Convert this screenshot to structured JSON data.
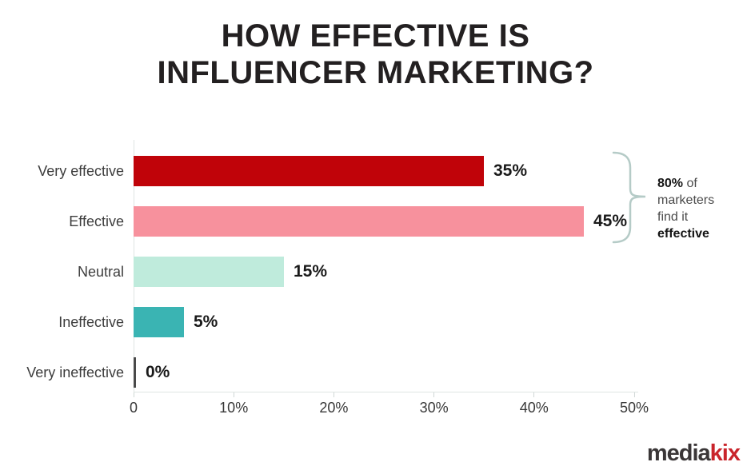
{
  "title": {
    "line1": "HOW EFFECTIVE IS",
    "line2": "INFLUENCER MARKETING?",
    "color": "#232021"
  },
  "chart_data": {
    "type": "bar",
    "orientation": "horizontal",
    "title": "HOW EFFECTIVE IS INFLUENCER MARKETING?",
    "categories": [
      "Very effective",
      "Effective",
      "Neutral",
      "Ineffective",
      "Very ineffective"
    ],
    "values": [
      35,
      45,
      15,
      5,
      0
    ],
    "value_labels": [
      "35%",
      "45%",
      "15%",
      "5%",
      "0%"
    ],
    "bar_colors": [
      "#c00309",
      "#f7919d",
      "#bfebdc",
      "#3ab4b3",
      "#4a4a4a"
    ],
    "xlabel": "",
    "ylabel": "",
    "xlim": [
      0,
      50
    ],
    "x_ticks": [
      "0",
      "10%",
      "20%",
      "30%",
      "40%",
      "50%"
    ],
    "x_tick_values": [
      0,
      10,
      20,
      30,
      40,
      50
    ],
    "grid": false,
    "legend": false,
    "annotation": "80% of marketers find it effective"
  },
  "annotation": {
    "bold1": "80%",
    "rest1": " of",
    "line2": "marketers",
    "line3": "find it",
    "bold4": "effective"
  },
  "axis": {
    "line_color": "#dfe5e3",
    "tick_color": "#cfd8d5"
  },
  "bracket": {
    "color": "#b5cbc7"
  },
  "logo": {
    "part1": "media",
    "part2": "kix",
    "dark_color": "#3a3637",
    "red_color": "#c9242b"
  }
}
